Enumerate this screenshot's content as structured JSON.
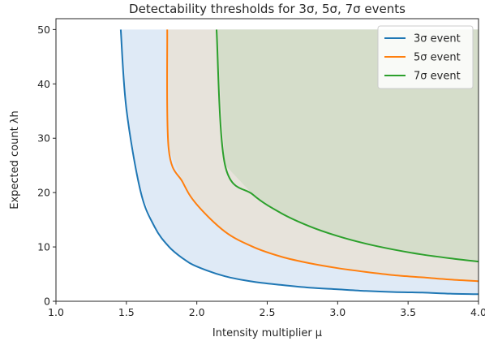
{
  "chart_data": {
    "type": "line",
    "title": "Detectability thresholds for 3σ, 5σ, 7σ events",
    "xlabel": "Intensity multiplier μ",
    "ylabel": "Expected count λh",
    "xlim": [
      1.0,
      4.0
    ],
    "ylim": [
      0,
      52
    ],
    "xticks": [
      "1.0",
      "1.5",
      "2.0",
      "2.5",
      "3.0",
      "3.5",
      "4.0"
    ],
    "yticks": [
      "0",
      "10",
      "20",
      "30",
      "40",
      "50"
    ],
    "grid": false,
    "legend_position": "top-right",
    "y_cap": 50,
    "series": [
      {
        "name": "3σ event",
        "color": "#1f77b4",
        "fill": "#dce8f5",
        "x": [
          1.46,
          1.5,
          1.6,
          1.7,
          1.8,
          1.9,
          2.0,
          2.2,
          2.4,
          2.6,
          2.8,
          3.0,
          3.2,
          3.4,
          3.6,
          3.8,
          4.0
        ],
        "y": [
          50.0,
          35.4,
          20.3,
          13.7,
          10.1,
          7.9,
          6.4,
          4.6,
          3.6,
          3.0,
          2.5,
          2.2,
          1.9,
          1.7,
          1.6,
          1.4,
          1.3
        ]
      },
      {
        "name": "5σ event",
        "color": "#ff7f0e",
        "fill": "#e8e2d8",
        "x": [
          1.79,
          1.8,
          1.9,
          2.0,
          2.2,
          2.4,
          2.6,
          2.8,
          3.0,
          3.2,
          3.4,
          3.6,
          3.8,
          4.0
        ],
        "y": [
          50.0,
          28.1,
          21.9,
          17.8,
          12.8,
          10.0,
          8.2,
          7.0,
          6.1,
          5.4,
          4.8,
          4.4,
          4.0,
          3.7
        ]
      },
      {
        "name": "7σ event",
        "color": "#2ca02c",
        "fill": "#d3dcc8",
        "x": [
          2.14,
          2.2,
          2.4,
          2.6,
          2.8,
          3.0,
          3.2,
          3.4,
          3.6,
          3.8,
          4.0
        ],
        "y": [
          50.0,
          25.1,
          19.6,
          16.2,
          13.8,
          12.0,
          10.6,
          9.5,
          8.6,
          7.9,
          7.3
        ]
      }
    ]
  }
}
